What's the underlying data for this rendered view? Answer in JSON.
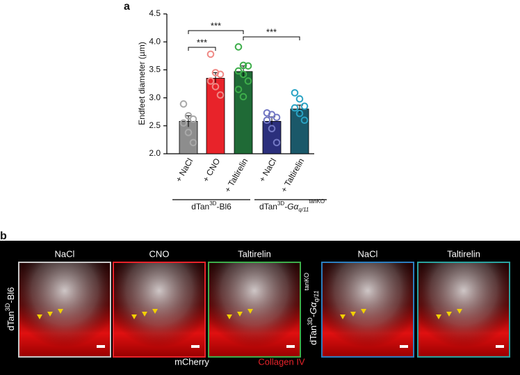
{
  "chart_data": {
    "type": "bar",
    "panel_label": "a",
    "y_label": "Endfeet diameter (µm)",
    "categories": [
      "+ NaCl",
      "+ CNO",
      "+ Taltirelin",
      "+ NaCl",
      "+ Taltirelin"
    ],
    "values": [
      2.58,
      3.35,
      3.47,
      2.58,
      2.8
    ],
    "errors": [
      0.1,
      0.1,
      0.1,
      0.08,
      0.07
    ],
    "points": [
      [
        2.89,
        2.68,
        2.62,
        2.55,
        2.38,
        2.2
      ],
      [
        3.78,
        3.45,
        3.42,
        3.3,
        3.2,
        3.05
      ],
      [
        3.91,
        3.58,
        3.57,
        3.48,
        3.42,
        3.3,
        3.15,
        3.02
      ],
      [
        2.73,
        2.7,
        2.65,
        2.6,
        2.45,
        2.2
      ],
      [
        3.09,
        2.98,
        2.85,
        2.82,
        2.72,
        2.6
      ]
    ],
    "colors": [
      "#8d8d8d",
      "#e8232a",
      "#1f6a36",
      "#2b2f7c",
      "#1a5869"
    ],
    "point_colors": [
      "#a9a9a9",
      "#f08a86",
      "#3eae4b",
      "#7378c4",
      "#2aa3c4"
    ],
    "ylim": [
      2.0,
      4.5
    ],
    "yticks": [
      {
        "value": 2,
        "label": "2.0"
      },
      {
        "value": 2.5,
        "label": "2.5"
      },
      {
        "value": 3,
        "label": "3.0"
      },
      {
        "value": 3.5,
        "label": "3.5"
      },
      {
        "value": 4,
        "label": "4.0"
      },
      {
        "value": 4.5,
        "label": "4.5"
      }
    ],
    "annotations": [
      "***",
      "***",
      "***"
    ],
    "groups": [
      [
        "dTan",
        "3D",
        "-Bl6"
      ],
      [
        "dTan",
        "3D",
        "-G",
        "α",
        "q/11",
        "tanKO"
      ]
    ]
  },
  "panel_b": {
    "panel_label": "b",
    "headers": [
      "NaCl",
      "CNO",
      "Taltirelin",
      "NaCl",
      "Taltirelin"
    ],
    "row_labels": [
      [
        "dTan",
        "3D",
        "-Bl6"
      ],
      [
        "dTan",
        "3D",
        "-G",
        "α",
        "q/11",
        "tanKO"
      ]
    ],
    "legend": [
      "mCherry",
      "Collagen IV"
    ]
  }
}
